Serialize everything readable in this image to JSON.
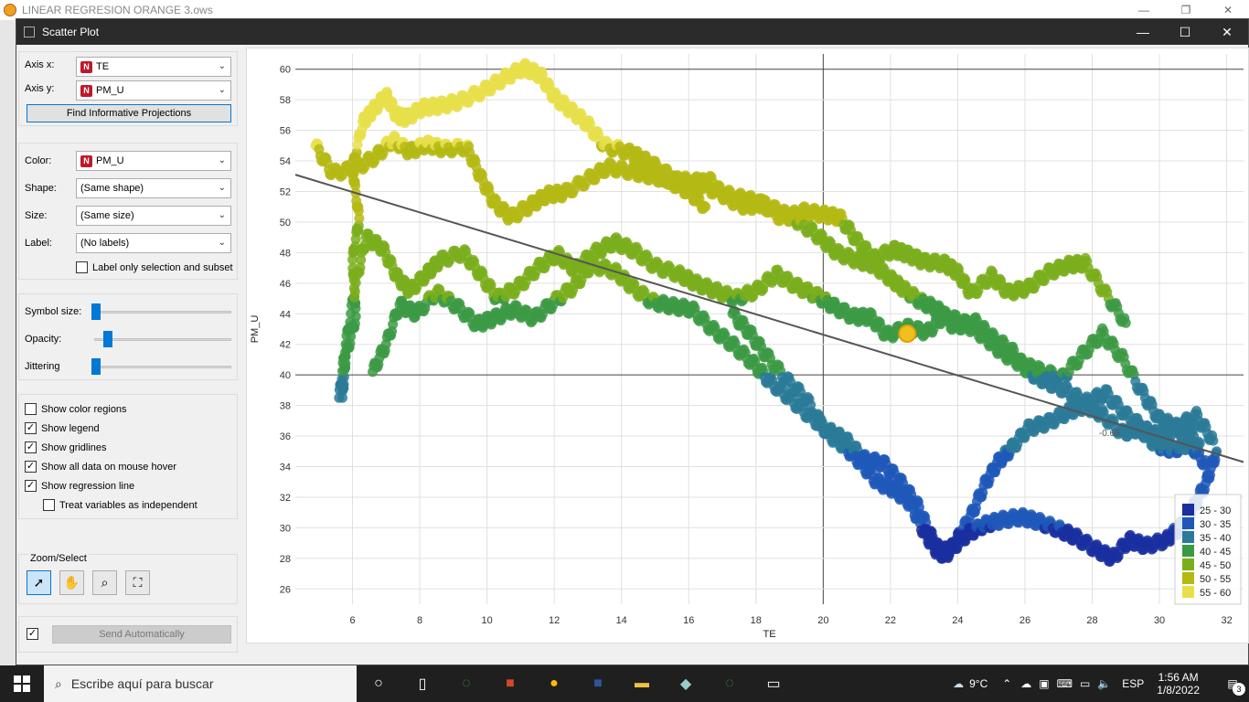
{
  "bg_app": {
    "title": "LINEAR REGRESION ORANGE 3.ows"
  },
  "window": {
    "title": "Scatter Plot"
  },
  "axis": {
    "x_label": "Axis x:",
    "x_value": "TE",
    "y_label": "Axis y:",
    "y_value": "PM_U",
    "find_button": "Find Informative Projections"
  },
  "attributes": {
    "color_label": "Color:",
    "color_value": "PM_U",
    "shape_label": "Shape:",
    "shape_value": "(Same shape)",
    "size_label": "Size:",
    "size_value": "(Same size)",
    "label_label": "Label:",
    "label_value": "(No labels)",
    "label_only": "Label only selection and subset"
  },
  "sliders": {
    "symbol_size": "Symbol size:",
    "symbol_size_level": 0.02,
    "opacity": "Opacity:",
    "opacity_level": 0.1,
    "jittering": "Jittering",
    "jittering_level": 0.0
  },
  "options": [
    {
      "label": "Show color regions",
      "checked": false
    },
    {
      "label": "Show legend",
      "checked": true
    },
    {
      "label": "Show gridlines",
      "checked": true
    },
    {
      "label": "Show all data on mouse hover",
      "checked": true
    },
    {
      "label": "Show regression line",
      "checked": true
    },
    {
      "label": "Treat variables as independent",
      "checked": false
    }
  ],
  "zoom": {
    "title": "Zoom/Select"
  },
  "send": {
    "label": "Send Automatically",
    "checked": true
  },
  "taskbar": {
    "search_placeholder": "Escribe aquí para buscar",
    "weather": "9°C",
    "lang": "ESP",
    "time": "1:56 AM",
    "date": "1/8/2022",
    "notifications": "3"
  },
  "chart_data": {
    "type": "scatter",
    "xlabel": "TE",
    "ylabel": "PM_U",
    "xlim": [
      4.3,
      32.5
    ],
    "ylim": [
      25,
      61
    ],
    "x_ticks": [
      6,
      8,
      10,
      12,
      14,
      16,
      18,
      20,
      22,
      24,
      26,
      28,
      30,
      32
    ],
    "y_ticks": [
      26,
      28,
      30,
      32,
      34,
      36,
      38,
      40,
      42,
      44,
      46,
      48,
      50,
      52,
      54,
      56,
      58,
      60
    ],
    "grid": true,
    "regression": {
      "x": [
        4.3,
        32.5
      ],
      "y": [
        53.1,
        34.3
      ],
      "label": "-0.69"
    },
    "legend": {
      "placement": "bottom-right",
      "items": [
        {
          "label": "25 - 30",
          "color": "#1a2fa0"
        },
        {
          "label": "30 - 35",
          "color": "#1f58b8"
        },
        {
          "label": "35 - 40",
          "color": "#2a7a98"
        },
        {
          "label": "40 - 45",
          "color": "#3c9a44"
        },
        {
          "label": "45 - 50",
          "color": "#7aae1c"
        },
        {
          "label": "50 - 55",
          "color": "#b5b914"
        },
        {
          "label": "55 - 60",
          "color": "#e8df4a"
        }
      ]
    },
    "series": [
      {
        "points": [
          [
            5.7,
            38.5
          ],
          [
            5.8,
            41.2
          ],
          [
            6.1,
            43.8
          ],
          [
            6.0,
            47.5
          ],
          [
            6.2,
            50.2
          ],
          [
            6.0,
            53.5
          ],
          [
            6.3,
            56.5
          ],
          [
            6.6,
            57.3
          ],
          [
            7.0,
            58.3
          ],
          [
            7.3,
            57.0
          ],
          [
            7.6,
            56.8
          ],
          [
            8.1,
            57.5
          ],
          [
            8.6,
            57.6
          ],
          [
            9.2,
            57.9
          ],
          [
            9.9,
            58.6
          ],
          [
            10.5,
            59.4
          ],
          [
            11.1,
            60.1
          ],
          [
            11.6,
            59.6
          ],
          [
            12.0,
            58.2
          ],
          [
            12.5,
            57.3
          ],
          [
            13.0,
            56.4
          ],
          [
            13.5,
            55.0
          ],
          [
            14.2,
            54.6
          ],
          [
            14.8,
            53.6
          ],
          [
            15.4,
            52.7
          ],
          [
            16.0,
            52.0
          ],
          [
            16.5,
            51.0
          ]
        ]
      },
      {
        "points": [
          [
            4.9,
            55.0
          ],
          [
            5.4,
            53.2
          ],
          [
            6.1,
            53.5
          ],
          [
            6.7,
            54.3
          ],
          [
            7.2,
            55.4
          ],
          [
            7.7,
            54.6
          ],
          [
            8.2,
            55.1
          ],
          [
            8.7,
            54.8
          ],
          [
            9.4,
            54.9
          ],
          [
            9.8,
            53.0
          ],
          [
            10.2,
            51.3
          ],
          [
            10.7,
            50.3
          ],
          [
            11.3,
            51.1
          ],
          [
            11.8,
            51.8
          ],
          [
            12.3,
            51.9
          ],
          [
            13.0,
            52.8
          ],
          [
            13.6,
            53.6
          ],
          [
            14.3,
            53.3
          ],
          [
            14.9,
            53.0
          ],
          [
            15.5,
            52.7
          ],
          [
            16.2,
            52.7
          ],
          [
            16.8,
            52.0
          ],
          [
            17.5,
            51.6
          ],
          [
            18.1,
            51.3
          ],
          [
            18.8,
            50.2
          ],
          [
            19.4,
            50.7
          ],
          [
            20.0,
            50.5
          ],
          [
            20.5,
            50.3
          ],
          [
            21.0,
            48.8
          ],
          [
            21.5,
            47.6
          ],
          [
            22.1,
            48.2
          ],
          [
            22.5,
            47.9
          ],
          [
            23.0,
            47.4
          ],
          [
            23.6,
            47.3
          ],
          [
            24.0,
            46.7
          ],
          [
            24.4,
            45.3
          ],
          [
            25.0,
            46.5
          ],
          [
            25.5,
            45.4
          ],
          [
            26.1,
            45.7
          ],
          [
            26.7,
            46.7
          ],
          [
            27.3,
            47.2
          ],
          [
            27.8,
            47.3
          ],
          [
            28.4,
            45.3
          ],
          [
            29.0,
            43.4
          ]
        ]
      },
      {
        "points": [
          [
            5.6,
            38.5
          ],
          [
            5.8,
            42.0
          ],
          [
            6.1,
            46.0
          ],
          [
            6.4,
            49.0
          ],
          [
            6.9,
            48.3
          ],
          [
            7.3,
            46.5
          ],
          [
            7.7,
            45.5
          ],
          [
            8.2,
            46.6
          ],
          [
            8.6,
            47.5
          ],
          [
            9.3,
            48.0
          ],
          [
            9.8,
            46.6
          ],
          [
            10.3,
            45.0
          ],
          [
            10.9,
            45.7
          ],
          [
            11.5,
            47.0
          ],
          [
            12.1,
            47.9
          ],
          [
            12.6,
            46.9
          ],
          [
            13.2,
            48.0
          ],
          [
            13.8,
            48.7
          ],
          [
            14.4,
            48.1
          ],
          [
            15.0,
            47.1
          ],
          [
            15.7,
            46.6
          ],
          [
            16.2,
            46.0
          ],
          [
            16.8,
            45.5
          ],
          [
            17.4,
            45.0
          ],
          [
            18.0,
            45.5
          ],
          [
            18.6,
            46.6
          ],
          [
            19.2,
            45.8
          ],
          [
            19.8,
            45.2
          ],
          [
            20.3,
            44.5
          ],
          [
            20.9,
            43.8
          ],
          [
            21.4,
            43.8
          ],
          [
            21.9,
            42.6
          ],
          [
            22.5,
            43.1
          ],
          [
            23.1,
            42.8
          ],
          [
            23.6,
            43.9
          ],
          [
            24.2,
            43.4
          ],
          [
            24.8,
            42.5
          ],
          [
            25.3,
            41.5
          ],
          [
            25.9,
            40.7
          ],
          [
            26.4,
            40.3
          ],
          [
            27.1,
            39.8
          ],
          [
            27.7,
            41.3
          ],
          [
            28.3,
            42.7
          ],
          [
            28.9,
            41.1
          ],
          [
            29.5,
            38.8
          ],
          [
            30.0,
            37.1
          ],
          [
            30.5,
            36.6
          ],
          [
            31.1,
            37.3
          ],
          [
            31.6,
            35.7
          ]
        ]
      },
      {
        "points": [
          [
            6.6,
            40.2
          ],
          [
            7.0,
            42.0
          ],
          [
            7.4,
            44.6
          ],
          [
            7.9,
            44.0
          ],
          [
            8.5,
            45.4
          ],
          [
            9.1,
            44.5
          ],
          [
            9.7,
            43.3
          ],
          [
            10.2,
            43.7
          ],
          [
            10.8,
            44.3
          ],
          [
            11.4,
            43.7
          ],
          [
            12.0,
            44.8
          ],
          [
            12.6,
            45.8
          ],
          [
            13.1,
            47.2
          ],
          [
            13.8,
            46.8
          ],
          [
            14.3,
            45.8
          ],
          [
            14.9,
            44.8
          ],
          [
            15.5,
            44.5
          ],
          [
            16.1,
            44.3
          ],
          [
            16.7,
            43.0
          ],
          [
            17.3,
            42.0
          ],
          [
            17.9,
            40.8
          ],
          [
            18.4,
            39.6
          ],
          [
            19.0,
            38.5
          ],
          [
            19.6,
            37.3
          ],
          [
            20.2,
            36.3
          ],
          [
            20.7,
            35.7
          ],
          [
            21.2,
            34.5
          ],
          [
            21.8,
            34.2
          ],
          [
            22.3,
            33.0
          ],
          [
            22.8,
            31.5
          ],
          [
            23.2,
            29.5
          ],
          [
            23.6,
            28.0
          ],
          [
            24.0,
            29.3
          ],
          [
            24.4,
            30.8
          ],
          [
            24.8,
            32.8
          ],
          [
            25.2,
            34.3
          ],
          [
            25.6,
            35.2
          ],
          [
            26.1,
            36.5
          ],
          [
            26.7,
            36.9
          ],
          [
            27.3,
            37.6
          ],
          [
            27.8,
            38.0
          ],
          [
            28.3,
            37.4
          ],
          [
            28.9,
            36.2
          ],
          [
            29.4,
            36.5
          ],
          [
            29.9,
            35.4
          ],
          [
            30.4,
            35.1
          ],
          [
            30.9,
            35.5
          ],
          [
            31.4,
            34.1
          ]
        ]
      },
      {
        "points": [
          [
            17.3,
            44.0
          ],
          [
            17.8,
            42.8
          ],
          [
            18.3,
            41.3
          ],
          [
            18.9,
            39.7
          ],
          [
            19.5,
            38.4
          ],
          [
            20.1,
            36.2
          ],
          [
            20.6,
            35.4
          ],
          [
            21.1,
            34.3
          ],
          [
            21.6,
            33.0
          ],
          [
            22.1,
            32.5
          ],
          [
            22.6,
            31.6
          ],
          [
            23.0,
            29.7
          ],
          [
            23.4,
            28.4
          ],
          [
            23.8,
            28.6
          ],
          [
            24.3,
            29.6
          ],
          [
            24.8,
            30.2
          ],
          [
            25.3,
            30.5
          ],
          [
            25.9,
            30.7
          ],
          [
            26.4,
            30.4
          ],
          [
            27.0,
            29.9
          ],
          [
            27.5,
            29.4
          ],
          [
            28.1,
            28.6
          ],
          [
            28.6,
            28.0
          ],
          [
            29.1,
            29.2
          ],
          [
            29.6,
            28.8
          ],
          [
            30.2,
            29.2
          ],
          [
            30.6,
            30.0
          ],
          [
            31.0,
            31.3
          ],
          [
            31.4,
            33.0
          ],
          [
            31.7,
            35.0
          ]
        ]
      },
      {
        "points": [
          [
            14.4,
            54.4
          ],
          [
            14.9,
            53.8
          ],
          [
            15.6,
            52.8
          ],
          [
            16.1,
            52.3
          ],
          [
            16.6,
            52.8
          ],
          [
            17.1,
            51.6
          ],
          [
            17.7,
            51.0
          ],
          [
            18.2,
            51.2
          ],
          [
            18.8,
            50.6
          ],
          [
            19.3,
            50.0
          ],
          [
            19.9,
            49.0
          ],
          [
            20.4,
            48.0
          ],
          [
            21.0,
            47.5
          ],
          [
            21.5,
            47.2
          ],
          [
            22.0,
            46.3
          ],
          [
            22.4,
            45.6
          ],
          [
            22.9,
            44.8
          ],
          [
            23.4,
            44.3
          ],
          [
            23.9,
            43.1
          ],
          [
            24.5,
            43.5
          ],
          [
            25.0,
            42.5
          ],
          [
            25.6,
            41.6
          ],
          [
            26.1,
            40.2
          ],
          [
            26.6,
            39.6
          ],
          [
            27.2,
            39.0
          ],
          [
            27.8,
            38.2
          ],
          [
            28.4,
            38.8
          ],
          [
            29.0,
            37.4
          ],
          [
            29.6,
            36.4
          ],
          [
            30.1,
            35.9
          ],
          [
            30.7,
            36.6
          ],
          [
            31.2,
            35.5
          ]
        ]
      }
    ],
    "selected_point": [
      22.5,
      42.7
    ]
  }
}
